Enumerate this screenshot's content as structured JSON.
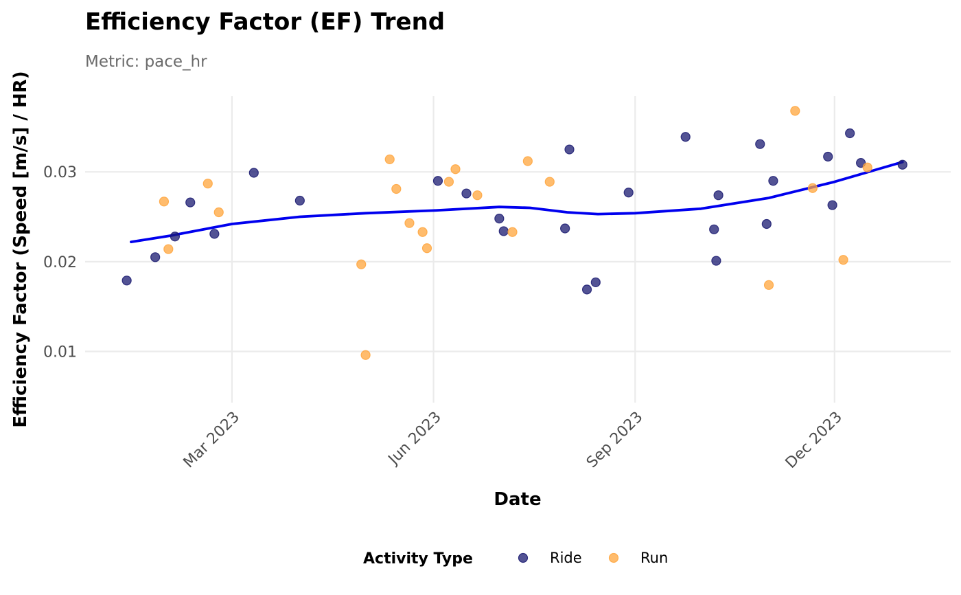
{
  "chart_data": {
    "type": "scatter",
    "title": "Efficiency Factor (EF) Trend",
    "subtitle": "Metric: pace_hr",
    "xlabel": "Date",
    "ylabel": "Efficiency Factor (Speed [m/s] / HR)",
    "xlim": [
      "2022-12-24",
      "2024-01-23"
    ],
    "ylim": [
      0.0043,
      0.0392
    ],
    "x_ticks": [
      {
        "date": "2023-03-01",
        "label": "Mar 2023"
      },
      {
        "date": "2023-06-01",
        "label": "Jun 2023"
      },
      {
        "date": "2023-09-01",
        "label": "Sep 2023"
      },
      {
        "date": "2023-12-01",
        "label": "Dec 2023"
      }
    ],
    "y_ticks": [
      {
        "value": 0.01,
        "label": "0.01"
      },
      {
        "value": 0.02,
        "label": "0.02"
      },
      {
        "value": 0.03,
        "label": "0.03"
      }
    ],
    "grid": true,
    "legend": {
      "title": "Activity Type",
      "position": "bottom"
    },
    "series": [
      {
        "name": "Ride",
        "color": "#191970",
        "points": [
          {
            "x": "2023-01-12",
            "y": 0.0179
          },
          {
            "x": "2023-01-25",
            "y": 0.0205
          },
          {
            "x": "2023-02-03",
            "y": 0.0228
          },
          {
            "x": "2023-02-10",
            "y": 0.0266
          },
          {
            "x": "2023-02-21",
            "y": 0.0231
          },
          {
            "x": "2023-03-11",
            "y": 0.0299
          },
          {
            "x": "2023-04-01",
            "y": 0.0268
          },
          {
            "x": "2023-06-03",
            "y": 0.029
          },
          {
            "x": "2023-06-16",
            "y": 0.0276
          },
          {
            "x": "2023-07-01",
            "y": 0.0248
          },
          {
            "x": "2023-07-03",
            "y": 0.0234
          },
          {
            "x": "2023-07-31",
            "y": 0.0237
          },
          {
            "x": "2023-08-02",
            "y": 0.0325
          },
          {
            "x": "2023-08-10",
            "y": 0.0169
          },
          {
            "x": "2023-08-14",
            "y": 0.0177
          },
          {
            "x": "2023-08-29",
            "y": 0.0277
          },
          {
            "x": "2023-09-24",
            "y": 0.0339
          },
          {
            "x": "2023-10-07",
            "y": 0.0236
          },
          {
            "x": "2023-10-08",
            "y": 0.0201
          },
          {
            "x": "2023-10-09",
            "y": 0.0274
          },
          {
            "x": "2023-10-31",
            "y": 0.0242
          },
          {
            "x": "2023-10-28",
            "y": 0.0331
          },
          {
            "x": "2023-11-03",
            "y": 0.029
          },
          {
            "x": "2023-11-28",
            "y": 0.0317
          },
          {
            "x": "2023-11-30",
            "y": 0.0263
          },
          {
            "x": "2023-12-08",
            "y": 0.0343
          },
          {
            "x": "2023-12-13",
            "y": 0.031
          },
          {
            "x": "2024-01-01",
            "y": 0.0308
          }
        ]
      },
      {
        "name": "Run",
        "color": "#ffa53c",
        "points": [
          {
            "x": "2023-01-29",
            "y": 0.0267
          },
          {
            "x": "2023-01-31",
            "y": 0.0214
          },
          {
            "x": "2023-02-18",
            "y": 0.0287
          },
          {
            "x": "2023-02-23",
            "y": 0.0255
          },
          {
            "x": "2023-04-29",
            "y": 0.0197
          },
          {
            "x": "2023-05-01",
            "y": 0.0096
          },
          {
            "x": "2023-05-12",
            "y": 0.0314
          },
          {
            "x": "2023-05-15",
            "y": 0.0281
          },
          {
            "x": "2023-05-21",
            "y": 0.0243
          },
          {
            "x": "2023-05-27",
            "y": 0.0233
          },
          {
            "x": "2023-05-29",
            "y": 0.0215
          },
          {
            "x": "2023-06-08",
            "y": 0.0289
          },
          {
            "x": "2023-06-11",
            "y": 0.0303
          },
          {
            "x": "2023-06-21",
            "y": 0.0274
          },
          {
            "x": "2023-07-07",
            "y": 0.0233
          },
          {
            "x": "2023-07-14",
            "y": 0.0312
          },
          {
            "x": "2023-07-24",
            "y": 0.0289
          },
          {
            "x": "2023-11-01",
            "y": 0.0174
          },
          {
            "x": "2023-11-13",
            "y": 0.0368
          },
          {
            "x": "2023-11-21",
            "y": 0.0282
          },
          {
            "x": "2023-12-05",
            "y": 0.0202
          },
          {
            "x": "2023-12-16",
            "y": 0.0305
          }
        ]
      },
      {
        "name": "",
        "type": "line",
        "color": "#0000ee",
        "points": [
          {
            "x": "2023-01-14",
            "y": 0.0222
          },
          {
            "x": "2023-02-01",
            "y": 0.0229
          },
          {
            "x": "2023-03-01",
            "y": 0.0242
          },
          {
            "x": "2023-04-01",
            "y": 0.025
          },
          {
            "x": "2023-05-01",
            "y": 0.0254
          },
          {
            "x": "2023-06-01",
            "y": 0.0257
          },
          {
            "x": "2023-07-01",
            "y": 0.0261
          },
          {
            "x": "2023-07-15",
            "y": 0.026
          },
          {
            "x": "2023-08-01",
            "y": 0.0255
          },
          {
            "x": "2023-08-15",
            "y": 0.0253
          },
          {
            "x": "2023-09-01",
            "y": 0.0254
          },
          {
            "x": "2023-10-01",
            "y": 0.0259
          },
          {
            "x": "2023-11-01",
            "y": 0.0271
          },
          {
            "x": "2023-12-01",
            "y": 0.0289
          },
          {
            "x": "2024-01-01",
            "y": 0.0311
          }
        ]
      }
    ]
  }
}
